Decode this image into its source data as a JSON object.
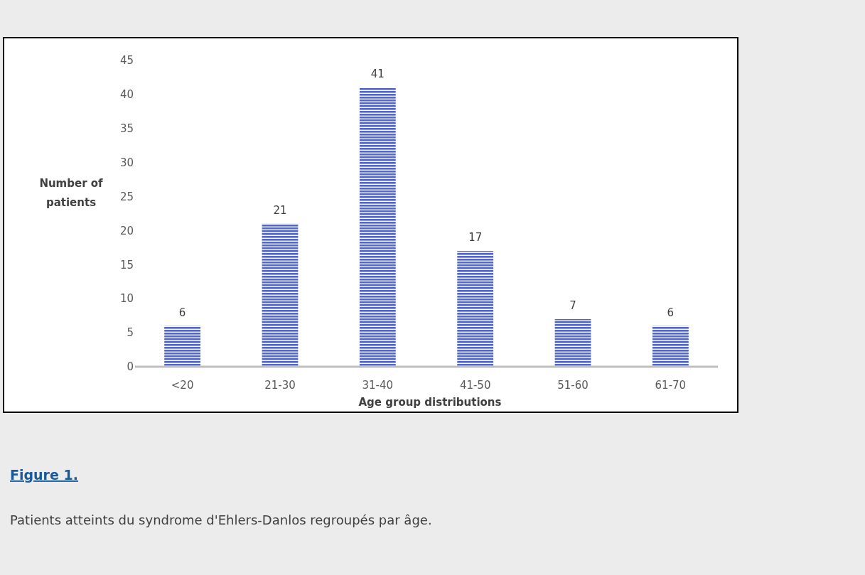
{
  "chart_data": {
    "type": "bar",
    "xlabel": "Age group distributions",
    "ylabel": "Number of patients",
    "categories": [
      "<20",
      "21-30",
      "31-40",
      "41-50",
      "51-60",
      "61-70"
    ],
    "values": [
      6,
      21,
      41,
      17,
      7,
      6
    ],
    "color": "#5366c8",
    "ylim": [
      0,
      45
    ],
    "yticks": [
      0,
      5,
      10,
      15,
      20,
      25,
      30,
      35,
      40,
      45
    ],
    "grid": false,
    "data_labels": true,
    "annotations": [
      "Figure 1.",
      "Patients atteints du syndrome d'Ehlers-Danlos regroupés par âge."
    ]
  }
}
